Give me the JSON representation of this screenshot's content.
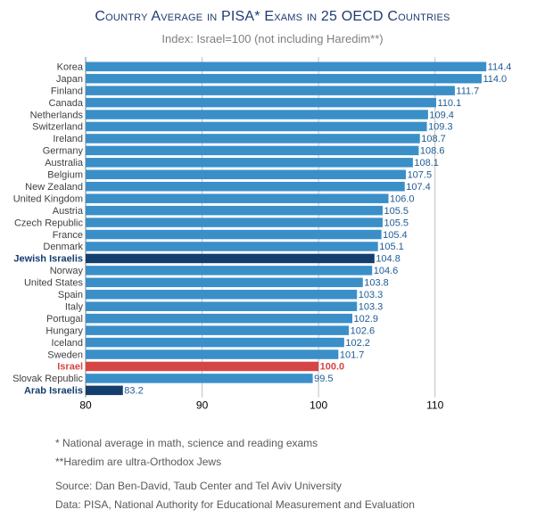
{
  "title": {
    "text": "Country Average in PISA* Exams in 25 OECD Countries"
  },
  "subtitle": "Index: Israel=100 (not including Haredim**)",
  "colors": {
    "bar": "#3a8fc8",
    "jewish": "#143e6e",
    "israel": "#d64545",
    "arab": "#143e6e",
    "value_label": "#1f5b95",
    "israel_label": "#d64545",
    "axis_label": "#000000"
  },
  "chart_data": {
    "type": "bar",
    "orientation": "horizontal",
    "title": "Country Average in PISA* Exams in 25 OECD Countries",
    "subtitle": "Index: Israel=100 (not including Haredim**)",
    "categories": [
      "Korea",
      "Japan",
      "Finland",
      "Canada",
      "Netherlands",
      "Switzerland",
      "Ireland",
      "Germany",
      "Australia",
      "Belgium",
      "New Zealand",
      "United Kingdom",
      "Austria",
      "Czech Republic",
      "France",
      "Denmark",
      "Jewish Israelis",
      "Norway",
      "United States",
      "Spain",
      "Italy",
      "Portugal",
      "Hungary",
      "Iceland",
      "Sweden",
      "Israel",
      "Slovak Republic",
      "Arab Israelis"
    ],
    "values": [
      114.4,
      114.0,
      111.7,
      110.1,
      109.4,
      109.3,
      108.7,
      108.6,
      108.1,
      107.5,
      107.4,
      106.0,
      105.5,
      105.5,
      105.4,
      105.1,
      104.8,
      104.6,
      103.8,
      103.3,
      103.3,
      102.9,
      102.6,
      102.2,
      101.7,
      100.0,
      99.5,
      83.2
    ],
    "value_labels": [
      "114.4",
      "114.0",
      "111.7",
      "110.1",
      "109.4",
      "109.3",
      "108.7",
      "108.6",
      "108.1",
      "107.5",
      "107.4",
      "106.0",
      "105.5",
      "105.5",
      "105.4",
      "105.1",
      "104.8",
      "104.6",
      "103.8",
      "103.3",
      "103.3",
      "102.9",
      "102.6",
      "102.2",
      "101.7",
      "100.0",
      "99.5",
      "83.2"
    ],
    "highlight": {
      "Jewish Israelis": "jewish",
      "Israel": "israel",
      "Arab Israelis": "arab"
    },
    "xlim": [
      80,
      115
    ],
    "xticks": [
      80,
      90,
      100,
      110
    ],
    "xtick_labels": [
      "80",
      "90",
      "100",
      "110"
    ],
    "xlabel": "",
    "ylabel": "",
    "grid": "vertical"
  },
  "notes": [
    "*  National average in math, science and reading exams",
    "**Haredim are ultra-Orthodox Jews"
  ],
  "sources": [
    "Source: Dan Ben-David, Taub Center and Tel Aviv University",
    "Data: PISA, National Authority for Educational Measurement and Evaluation"
  ]
}
